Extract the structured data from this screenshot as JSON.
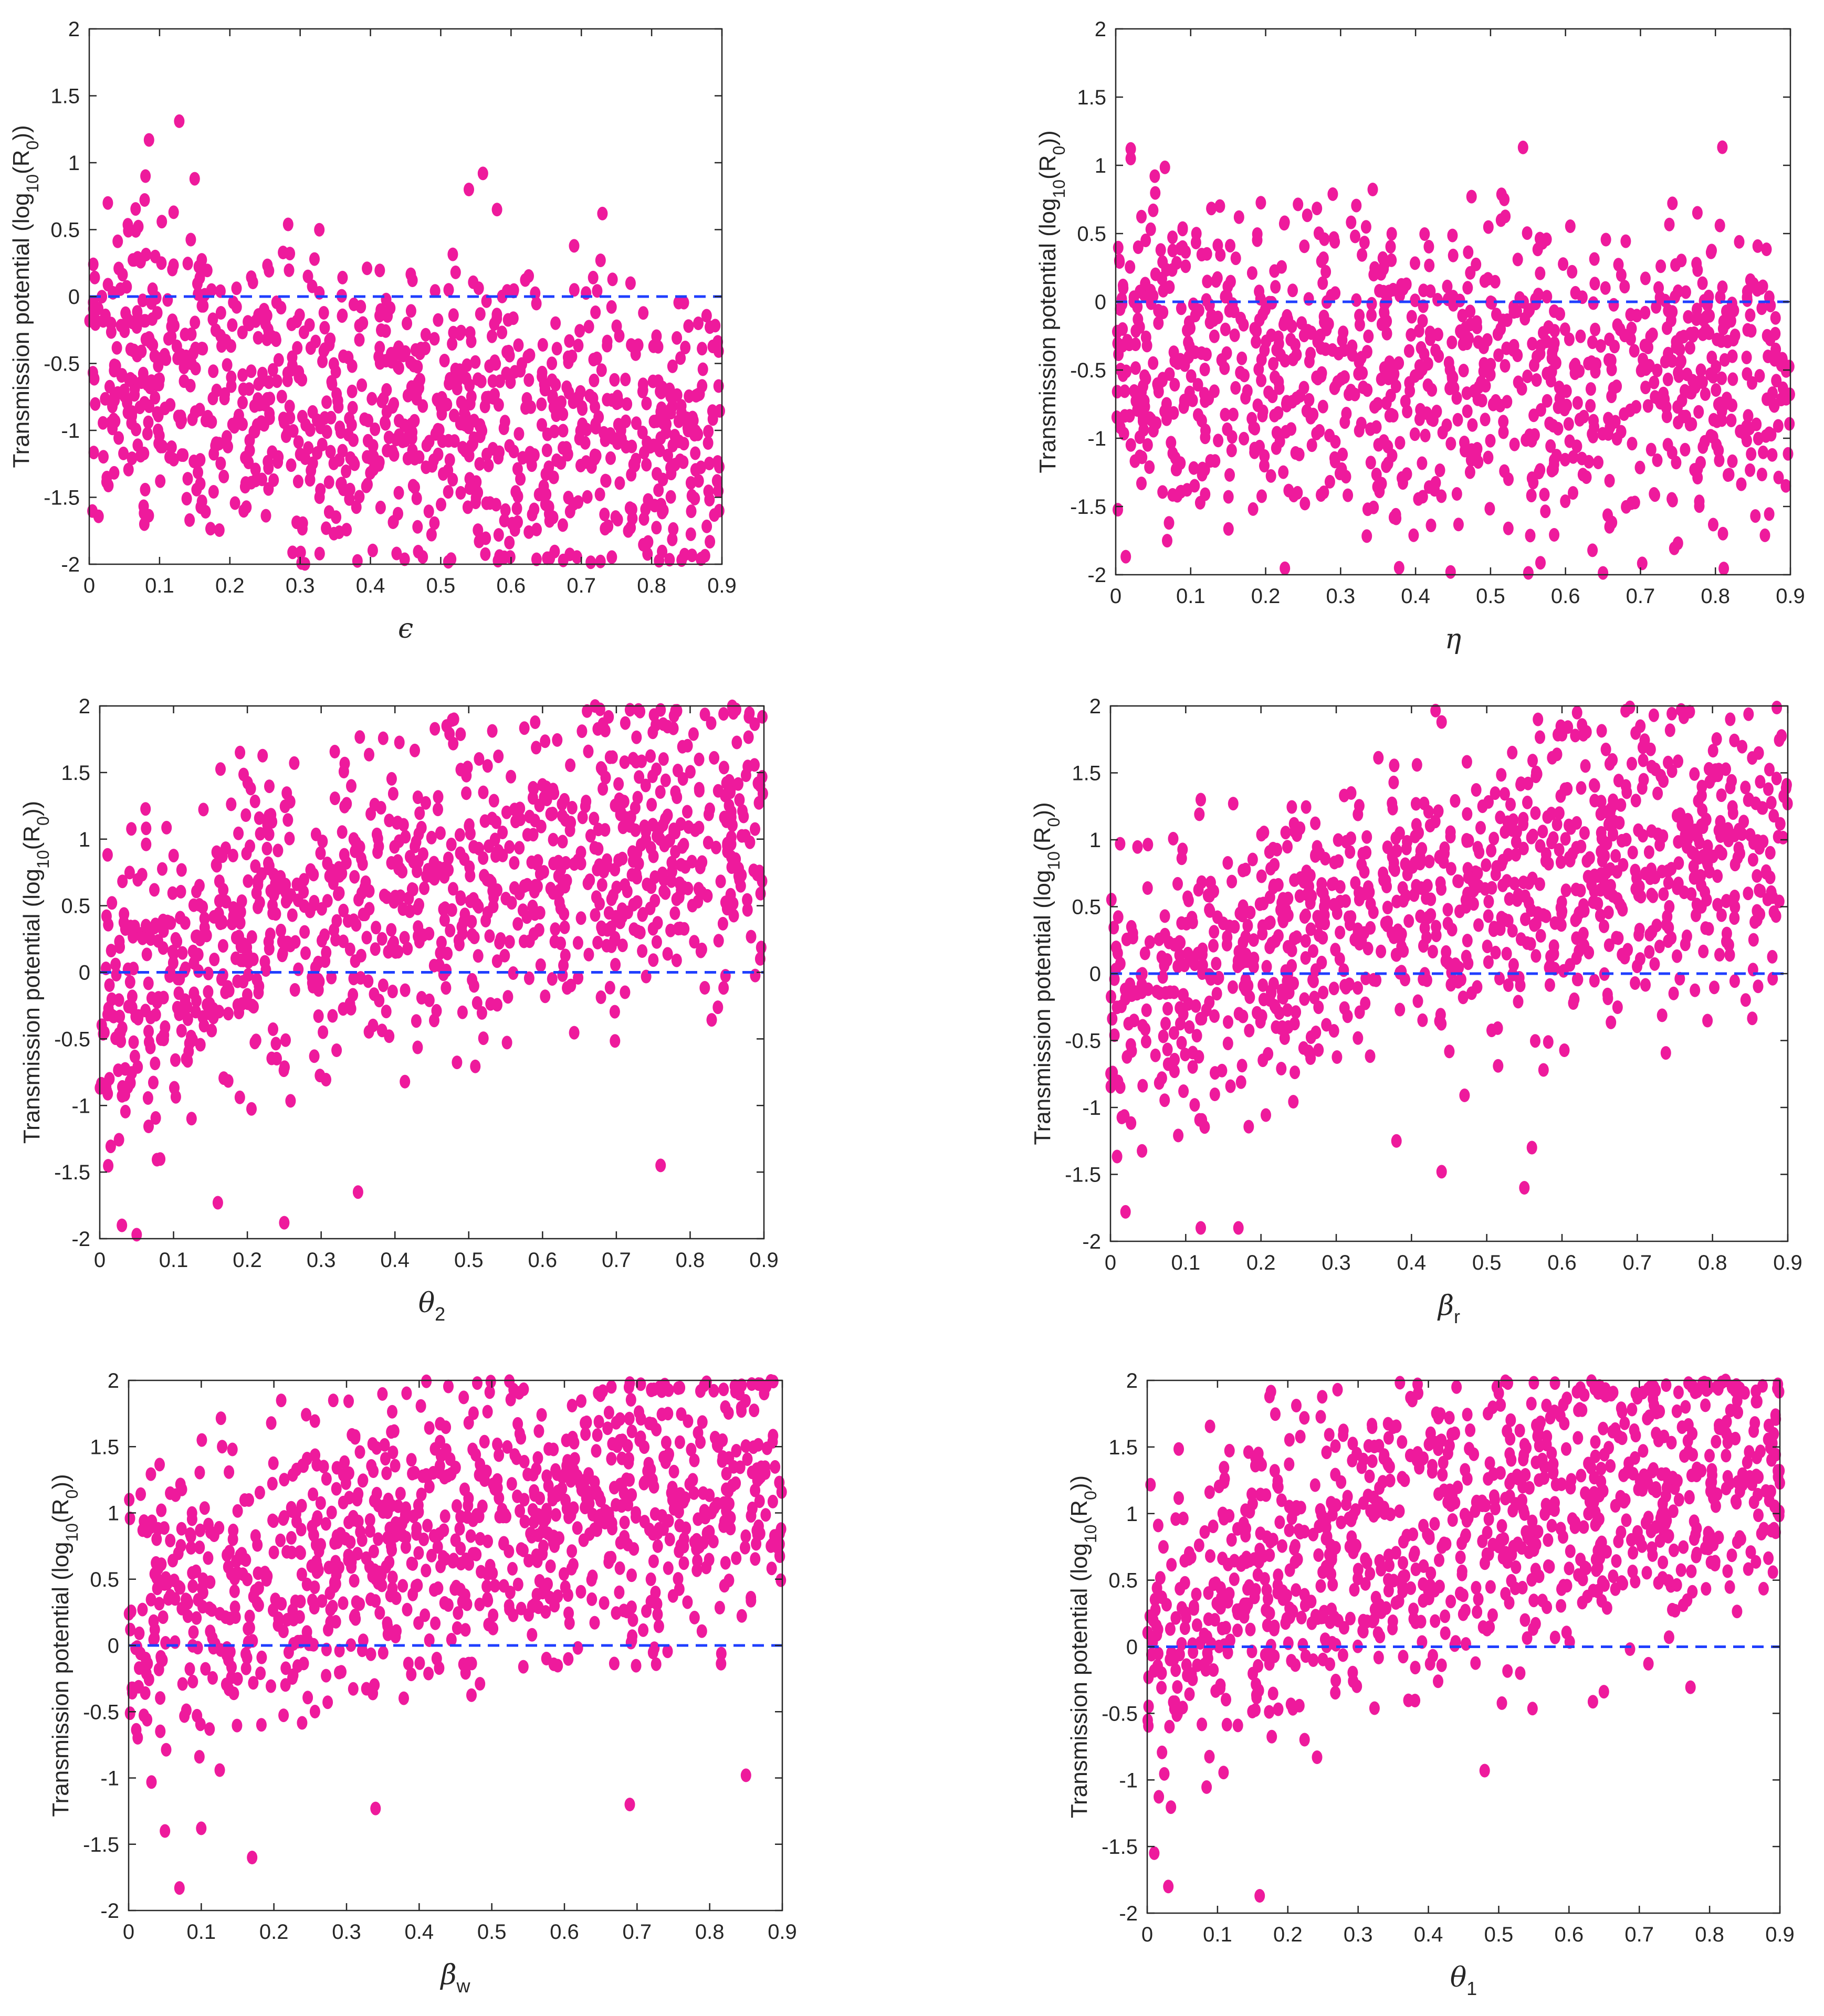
{
  "figure": {
    "colors": {
      "points": "#ee1a9c",
      "reference_line": "#1f3fff",
      "axes": "#262626"
    },
    "ylabel_parts": [
      "Transmission potential (log",
      "10",
      "(R",
      "0",
      "))"
    ]
  },
  "chart_data": [
    {
      "id": "epsilon",
      "type": "scatter",
      "xlabel": "ϵ",
      "xlabel_sub": "",
      "xlim": [
        0,
        0.9
      ],
      "ylim": [
        -2,
        2
      ],
      "xticks": [
        "0",
        "0.1",
        "0.2",
        "0.3",
        "0.4",
        "0.5",
        "0.6",
        "0.7",
        "0.8",
        "0.9"
      ],
      "yticks": [
        "-2",
        "-1.5",
        "-1",
        "-0.5",
        "0",
        "0.5",
        "1",
        "1.5",
        "2"
      ],
      "reference_line_y": 0,
      "n_points": 1000,
      "trend": {
        "start": -0.3,
        "end": -1.15,
        "spread": 0.55
      },
      "outliers": [
        [
          0.085,
          1.17
        ],
        [
          0.128,
          1.31
        ],
        [
          0.15,
          0.88
        ],
        [
          0.12,
          0.63
        ],
        [
          0.08,
          0.9
        ],
        [
          0.54,
          0.8
        ],
        [
          0.56,
          0.92
        ],
        [
          0.58,
          0.65
        ],
        [
          0.73,
          0.62
        ],
        [
          0.69,
          0.05
        ],
        [
          0.77,
          0.1
        ]
      ]
    },
    {
      "id": "eta",
      "type": "scatter",
      "xlabel": "η",
      "xlabel_sub": "",
      "xlim": [
        0,
        0.9
      ],
      "ylim": [
        -2,
        2
      ],
      "xticks": [
        "0",
        "0.1",
        "0.2",
        "0.3",
        "0.4",
        "0.5",
        "0.6",
        "0.7",
        "0.8",
        "0.9"
      ],
      "yticks": [
        "-2",
        "-1.5",
        "-1",
        "-0.5",
        "0",
        "0.5",
        "1",
        "1.5",
        "2"
      ],
      "reference_line_y": 0,
      "n_points": 1000,
      "trend": {
        "start": -0.35,
        "end": -0.6,
        "spread": 0.6
      },
      "outliers": [
        [
          0.02,
          1.12
        ],
        [
          0.02,
          1.05
        ],
        [
          0.05,
          0.67
        ],
        [
          0.04,
          0.45
        ],
        [
          0.03,
          0.4
        ],
        [
          0.06,
          0.38
        ],
        [
          0.01,
          0.1
        ]
      ]
    },
    {
      "id": "theta2",
      "type": "scatter",
      "xlabel": "θ",
      "xlabel_sub": "2",
      "xlim": [
        0,
        0.9
      ],
      "ylim": [
        -2,
        2
      ],
      "xticks": [
        "0",
        "0.1",
        "0.2",
        "0.3",
        "0.4",
        "0.5",
        "0.6",
        "0.7",
        "0.8",
        "0.9"
      ],
      "yticks": [
        "-2",
        "-1.5",
        "-1",
        "-0.5",
        "0",
        "0.5",
        "1",
        "1.5",
        "2"
      ],
      "reference_line_y": 0,
      "n_points": 1000,
      "trend": {
        "start": -0.5,
        "end": 1.05,
        "spread": 0.55
      },
      "outliers": [
        [
          0.19,
          1.65
        ],
        [
          0.47,
          1.85
        ],
        [
          0.48,
          1.9
        ],
        [
          0.76,
          1.97
        ],
        [
          0.73,
          1.97
        ],
        [
          0.03,
          -1.9
        ],
        [
          0.05,
          -1.97
        ],
        [
          0.25,
          -1.88
        ],
        [
          0.16,
          -1.73
        ],
        [
          0.35,
          -1.65
        ],
        [
          0.76,
          -1.45
        ]
      ]
    },
    {
      "id": "beta_r",
      "type": "scatter",
      "xlabel": "β",
      "xlabel_sub": "r",
      "xlim": [
        0,
        0.9
      ],
      "ylim": [
        -2,
        2
      ],
      "xticks": [
        "0",
        "0.1",
        "0.2",
        "0.3",
        "0.4",
        "0.5",
        "0.6",
        "0.7",
        "0.8",
        "0.9"
      ],
      "yticks": [
        "-2",
        "-1.5",
        "-1",
        "-0.5",
        "0",
        "0.5",
        "1",
        "1.5",
        "2"
      ],
      "reference_line_y": 0,
      "n_points": 1000,
      "trend": {
        "start": -0.55,
        "end": 1.0,
        "spread": 0.55
      },
      "outliers": [
        [
          0.44,
          1.88
        ],
        [
          0.62,
          1.95
        ],
        [
          0.12,
          1.3
        ],
        [
          0.02,
          -1.78
        ],
        [
          0.12,
          -1.9
        ],
        [
          0.17,
          -1.9
        ],
        [
          0.55,
          -1.6
        ],
        [
          0.56,
          -1.3
        ],
        [
          0.44,
          -1.48
        ],
        [
          0.38,
          -1.25
        ]
      ]
    },
    {
      "id": "beta_w",
      "type": "scatter",
      "xlabel": "β",
      "xlabel_sub": "w",
      "xlim": [
        0,
        0.9
      ],
      "ylim": [
        -2,
        2
      ],
      "xticks": [
        "0",
        "0.1",
        "0.2",
        "0.3",
        "0.4",
        "0.5",
        "0.6",
        "0.7",
        "0.8",
        "0.9"
      ],
      "yticks": [
        "-2",
        "-1.5",
        "-1",
        "-0.5",
        "0",
        "0.5",
        "1",
        "1.5",
        "2"
      ],
      "reference_line_y": 0,
      "n_points": 1000,
      "trend": {
        "start": -0.1,
        "end": 1.25,
        "spread": 0.55
      },
      "outliers": [
        [
          0.07,
          -1.83
        ],
        [
          0.17,
          -1.6
        ],
        [
          0.05,
          -1.4
        ],
        [
          0.1,
          -1.38
        ],
        [
          0.34,
          -1.23
        ],
        [
          0.69,
          -1.2
        ],
        [
          0.48,
          1.98
        ],
        [
          0.69,
          1.98
        ],
        [
          0.53,
          1.93
        ],
        [
          0.85,
          -0.98
        ]
      ]
    },
    {
      "id": "theta1",
      "type": "scatter",
      "xlabel": "θ",
      "xlabel_sub": "1",
      "xlim": [
        0,
        0.9
      ],
      "ylim": [
        -2,
        2
      ],
      "xticks": [
        "0",
        "0.1",
        "0.2",
        "0.3",
        "0.4",
        "0.5",
        "0.6",
        "0.7",
        "0.8",
        "0.9"
      ],
      "yticks": [
        "-2",
        "-1.5",
        "-1",
        "-0.5",
        "0",
        "0.5",
        "1",
        "1.5",
        "2"
      ],
      "reference_line_y": 0,
      "n_points": 1000,
      "trend": {
        "start": -0.1,
        "end": 1.3,
        "spread": 0.55
      },
      "outliers": [
        [
          0.03,
          -1.8
        ],
        [
          0.16,
          -1.87
        ],
        [
          0.01,
          -1.55
        ],
        [
          0.77,
          1.98
        ],
        [
          0.58,
          1.98
        ],
        [
          0.44,
          1.95
        ],
        [
          0.48,
          -0.93
        ]
      ]
    }
  ]
}
